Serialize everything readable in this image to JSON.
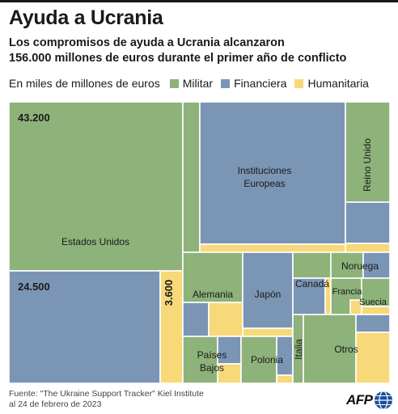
{
  "header": {
    "title": "Ayuda a Ucrania",
    "subtitle_line1": "Los compromisos de ayuda a Ucrania alcanzaron",
    "subtitle_line2": "156.000 millones de euros durante el primer año de conflicto"
  },
  "legend": {
    "unit": "En miles de millones de euros",
    "items": [
      {
        "label": "Militar",
        "color": "#8db27a"
      },
      {
        "label": "Financiera",
        "color": "#7b95b5"
      },
      {
        "label": "Humanitaria",
        "color": "#f7d97a"
      }
    ]
  },
  "chart_data": {
    "type": "treemap",
    "value_labels": [
      "43.200",
      "24.500",
      "3.600"
    ],
    "donors": [
      {
        "name": "Estados Unidos",
        "militar": 43.2,
        "financiera": 24.5,
        "humanitaria": 3.6
      },
      {
        "name": "Instituciones Europeas"
      },
      {
        "name": "Reino Unido"
      },
      {
        "name": "Alemania"
      },
      {
        "name": "Japón"
      },
      {
        "name": "Canadá"
      },
      {
        "name": "Noruega"
      },
      {
        "name": "Francia"
      },
      {
        "name": "Suecia"
      },
      {
        "name": "Países Bajos"
      },
      {
        "name": "Polonia"
      },
      {
        "name": "Italia"
      },
      {
        "name": "Otros"
      }
    ]
  },
  "footer": {
    "source_line1": "Fuente: \"The Ukraine Support Tracker\" Kiel Institute",
    "source_line2": "al 24 de febrero de 2023",
    "logo": "AFP"
  }
}
